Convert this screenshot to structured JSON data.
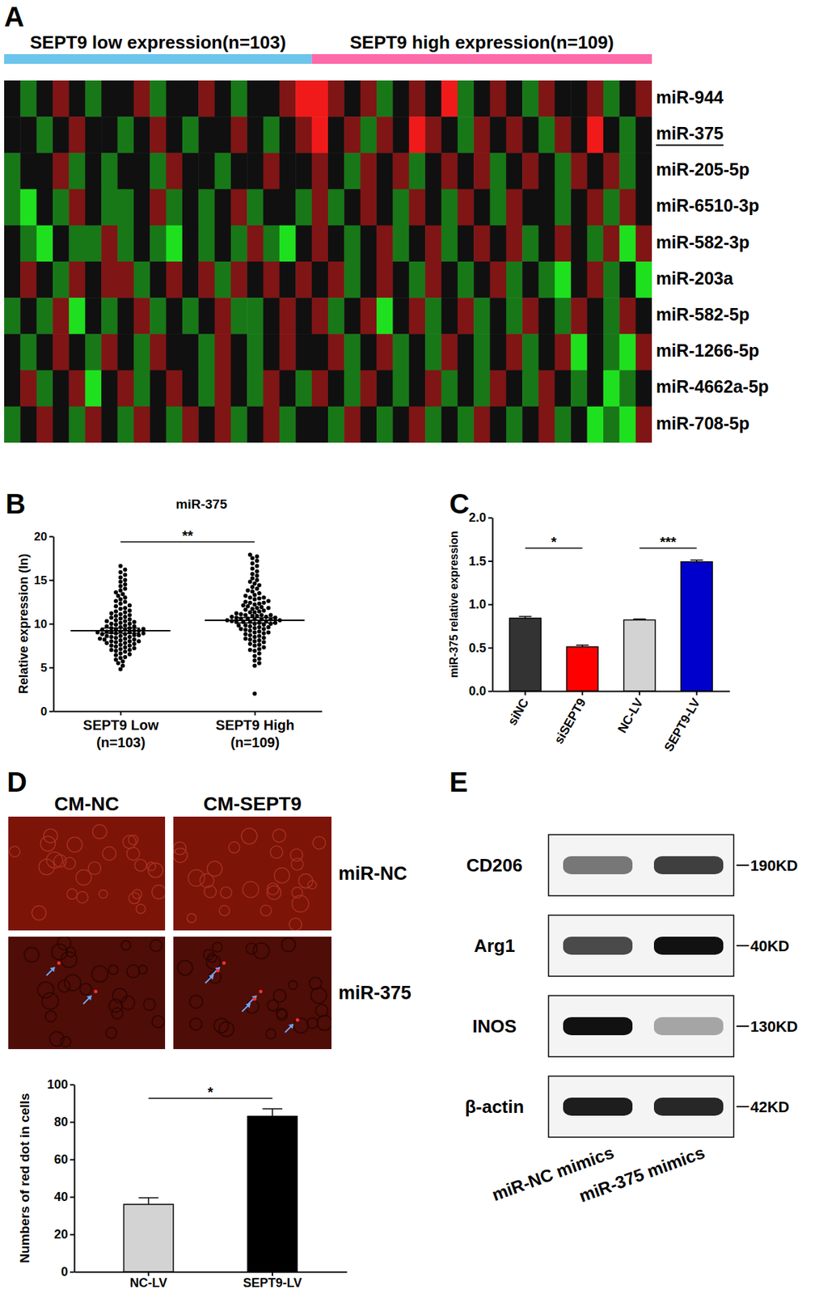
{
  "panel_labels": [
    "A",
    "B",
    "C",
    "D",
    "E"
  ],
  "chart_data": [
    {
      "type": "heatmap",
      "rows": [
        "miR-944",
        "miR-375",
        "miR-205-5p",
        "miR-6510-3p",
        "miR-582-3p",
        "miR-203a",
        "miR-582-5p",
        "miR-1266-5p",
        "miR-4662a-5p",
        "miR-708-5p"
      ],
      "highlight_row": 1,
      "zlim": [
        -2,
        2
      ],
      "groups": [
        {
          "label": "SEPT9 low expression(n=103)",
          "color": "#6cc5ec",
          "cells": [
            [
              0,
              -1,
              0,
              1,
              0,
              -1,
              0,
              0,
              1,
              -1,
              0,
              0,
              1,
              0,
              -1,
              0,
              0,
              1,
              2
            ],
            [
              0,
              0,
              -1,
              0,
              1,
              0,
              0,
              -1,
              0,
              1,
              0,
              -1,
              0,
              0,
              1,
              0,
              -1,
              0,
              1
            ],
            [
              -1,
              0,
              0,
              1,
              -1,
              0,
              -1,
              0,
              0,
              -1,
              1,
              0,
              0,
              -1,
              0,
              0,
              1,
              0,
              0
            ],
            [
              -1,
              -2,
              0,
              -1,
              1,
              0,
              -1,
              -1,
              0,
              1,
              -1,
              0,
              -1,
              0,
              1,
              -1,
              0,
              0,
              -1
            ],
            [
              0,
              -1,
              -2,
              0,
              -1,
              -1,
              1,
              -1,
              0,
              -1,
              -2,
              0,
              -1,
              0,
              -1,
              1,
              -1,
              -2,
              0
            ],
            [
              0,
              1,
              0,
              -1,
              1,
              0,
              1,
              1,
              -1,
              0,
              1,
              0,
              1,
              -1,
              1,
              0,
              1,
              0,
              1
            ],
            [
              -1,
              0,
              -1,
              1,
              -2,
              0,
              -1,
              0,
              1,
              -1,
              0,
              -1,
              0,
              1,
              -1,
              -1,
              0,
              1,
              0
            ],
            [
              0,
              -1,
              0,
              1,
              0,
              -1,
              1,
              0,
              -1,
              1,
              0,
              0,
              -1,
              1,
              0,
              -1,
              0,
              1,
              0
            ],
            [
              0,
              1,
              -1,
              0,
              1,
              -2,
              0,
              1,
              -1,
              0,
              1,
              0,
              -1,
              1,
              0,
              -1,
              1,
              0,
              -1
            ],
            [
              -1,
              0,
              1,
              0,
              -1,
              1,
              0,
              -1,
              1,
              0,
              -1,
              1,
              0,
              1,
              -1,
              0,
              1,
              -1,
              0
            ]
          ]
        },
        {
          "label": "SEPT9 high expression(n=109)",
          "color": "#fd6aa9",
          "cells": [
            [
              2,
              1,
              0,
              1,
              -1,
              0,
              1,
              0,
              2,
              -1,
              0,
              1,
              0,
              -1,
              1,
              0,
              0,
              1,
              -1,
              0,
              1
            ],
            [
              2,
              0,
              1,
              -1,
              1,
              0,
              2,
              1,
              0,
              -1,
              1,
              0,
              1,
              0,
              -1,
              1,
              0,
              2,
              0,
              -1,
              0
            ],
            [
              1,
              0,
              -1,
              1,
              0,
              1,
              -1,
              0,
              1,
              0,
              1,
              -1,
              0,
              1,
              0,
              -1,
              1,
              0,
              1,
              -1,
              0
            ],
            [
              1,
              -1,
              0,
              1,
              0,
              -1,
              1,
              0,
              -1,
              1,
              0,
              -1,
              1,
              0,
              0,
              -1,
              0,
              1,
              -1,
              1,
              0
            ],
            [
              1,
              0,
              -1,
              0,
              1,
              -1,
              0,
              1,
              -1,
              0,
              1,
              0,
              1,
              -1,
              0,
              1,
              0,
              -1,
              1,
              -2,
              1
            ],
            [
              0,
              1,
              -1,
              0,
              1,
              0,
              -1,
              1,
              0,
              -1,
              0,
              1,
              -1,
              0,
              -1,
              -2,
              0,
              1,
              -1,
              0,
              -2
            ],
            [
              1,
              -1,
              0,
              1,
              -2,
              0,
              1,
              -1,
              0,
              1,
              -1,
              0,
              -1,
              1,
              0,
              -1,
              1,
              0,
              -1,
              1,
              0
            ],
            [
              0,
              1,
              -1,
              0,
              1,
              -1,
              0,
              -1,
              1,
              0,
              -1,
              0,
              1,
              -1,
              0,
              1,
              -2,
              0,
              -1,
              -2,
              1
            ],
            [
              1,
              0,
              -1,
              1,
              0,
              -1,
              0,
              1,
              -1,
              0,
              -1,
              1,
              0,
              -1,
              1,
              0,
              -1,
              0,
              -2,
              -1,
              0
            ],
            [
              0,
              -1,
              1,
              0,
              -1,
              0,
              1,
              -1,
              0,
              -1,
              1,
              0,
              -1,
              0,
              1,
              -1,
              0,
              -2,
              -1,
              -2,
              1
            ]
          ]
        }
      ]
    },
    {
      "type": "scatter",
      "title": "miR-375",
      "y_label": "Relative expression (ln)",
      "categories": [
        "SEPT9 Low\n(n=103)",
        "SEPT9 High\n(n=109)"
      ],
      "values": [
        [
          4.8,
          5.2,
          5.5,
          5.7,
          5.9,
          6.1,
          6.2,
          6.4,
          6.5,
          6.6,
          6.8,
          6.9,
          7.0,
          7.1,
          7.2,
          7.3,
          7.4,
          7.5,
          7.5,
          7.6,
          7.7,
          7.8,
          7.8,
          7.9,
          8.0,
          8.0,
          8.1,
          8.2,
          8.2,
          8.3,
          8.3,
          8.4,
          8.5,
          8.5,
          8.6,
          8.6,
          8.7,
          8.7,
          8.8,
          8.8,
          8.9,
          8.9,
          9.0,
          9.0,
          9.1,
          9.1,
          9.2,
          9.2,
          9.3,
          9.3,
          9.4,
          9.4,
          9.5,
          9.5,
          9.6,
          9.7,
          9.7,
          9.8,
          9.9,
          10.0,
          10.0,
          10.1,
          10.2,
          10.3,
          10.3,
          10.4,
          10.5,
          10.6,
          10.7,
          10.8,
          10.9,
          11.0,
          11.1,
          11.2,
          11.3,
          11.4,
          11.5,
          11.7,
          11.8,
          12.0,
          12.1,
          12.3,
          12.5,
          12.6,
          12.8,
          13.0,
          13.2,
          13.4,
          13.6,
          13.8,
          14.0,
          14.3,
          14.5,
          14.8,
          15.0,
          15.3,
          15.6,
          15.9,
          16.2,
          16.6,
          7.0,
          8.0,
          9.0
        ],
        [
          2.0,
          5.2,
          5.8,
          6.3,
          6.6,
          6.9,
          7.1,
          7.3,
          7.5,
          7.7,
          7.9,
          8.1,
          8.2,
          8.4,
          8.5,
          8.6,
          8.8,
          8.9,
          9.0,
          9.1,
          9.2,
          9.3,
          9.4,
          9.5,
          9.6,
          9.7,
          9.8,
          9.9,
          10.0,
          10.0,
          10.1,
          10.2,
          10.2,
          10.3,
          10.3,
          10.4,
          10.4,
          10.5,
          10.5,
          10.6,
          10.6,
          10.7,
          10.7,
          10.8,
          10.8,
          10.9,
          10.9,
          11.0,
          11.0,
          11.1,
          11.2,
          11.3,
          11.4,
          11.5,
          11.6,
          11.7,
          11.8,
          11.9,
          12.0,
          12.1,
          12.2,
          12.3,
          12.4,
          12.5,
          12.6,
          12.8,
          12.9,
          13.0,
          13.2,
          13.3,
          13.5,
          13.7,
          13.8,
          14.0,
          14.2,
          14.4,
          14.6,
          14.8,
          15.0,
          15.2,
          15.5,
          15.7,
          16.0,
          16.3,
          16.6,
          16.9,
          17.2,
          17.5,
          17.7,
          17.9,
          8.0,
          8.7,
          9.4,
          9.6,
          10.1,
          10.5,
          11.3,
          6.0,
          7.0,
          7.6,
          8.3,
          9.0,
          9.8,
          10.2,
          11.0,
          11.8,
          12.4,
          13.0,
          5.5
        ]
      ],
      "means": [
        9.2,
        10.4
      ],
      "errors": [
        0.3,
        0.3
      ],
      "color": "#000000",
      "marker": "circle",
      "ylim": [
        0,
        20
      ],
      "yticks": [
        0,
        5,
        10,
        15,
        20
      ],
      "annotations": [
        {
          "text": "**",
          "from": 0,
          "to": 1
        }
      ]
    },
    {
      "type": "bar",
      "y_label": "miR-375 relative expression",
      "categories": [
        "siNC",
        "siSEPT9",
        "NC-LV",
        "SEPT9-LV"
      ],
      "values": [
        0.84,
        0.51,
        0.82,
        1.49
      ],
      "errors": [
        0.02,
        0.02,
        0.01,
        0.02
      ],
      "colors": [
        "#333333",
        "#ff0000",
        "#d3d3d3",
        "#0000cc"
      ],
      "ylim": [
        0,
        2
      ],
      "yticks": [
        {
          "value": 0,
          "label": "0.0"
        },
        {
          "value": 0.5,
          "label": "0.5"
        },
        {
          "value": 1,
          "label": "1.0"
        },
        {
          "value": 1.5,
          "label": "1.5"
        },
        {
          "value": 2,
          "label": "2.0"
        }
      ],
      "annotations": [
        {
          "text": "*",
          "from": 0,
          "to": 1
        },
        {
          "text": "***",
          "from": 2,
          "to": 3
        }
      ]
    },
    {
      "type": "bar",
      "y_label": "Numbers of red dot in cells",
      "categories": [
        "NC-LV",
        "SEPT9-LV"
      ],
      "values": [
        36,
        83
      ],
      "errors": [
        3.5,
        4
      ],
      "colors": [
        "#d3d3d3",
        "#000000"
      ],
      "ylim": [
        0,
        100
      ],
      "yticks": [
        0,
        20,
        40,
        60,
        80,
        100
      ],
      "annotations": [
        {
          "text": "*",
          "from": 0,
          "to": 1
        }
      ]
    }
  ],
  "microscopy": {
    "columns": [
      "CM-NC",
      "CM-SEPT9"
    ],
    "rows": [
      "miR-NC",
      "miR-375"
    ],
    "arrows": [
      [
        0,
        0
      ],
      [
        2,
        5
      ]
    ]
  },
  "western_blot": {
    "lanes": [
      "miR-NC mimics",
      "miR-375 mimics"
    ],
    "rows": [
      {
        "label": "CD206",
        "size": "190KD",
        "intensity": [
          0.55,
          0.8
        ]
      },
      {
        "label": "Arg1",
        "size": "40KD",
        "intensity": [
          0.75,
          1.0
        ]
      },
      {
        "label": "INOS",
        "size": "130KD",
        "intensity": [
          1.0,
          0.35
        ]
      },
      {
        "label": "β-actin",
        "size": "42KD",
        "intensity": [
          0.95,
          0.9
        ]
      }
    ]
  }
}
